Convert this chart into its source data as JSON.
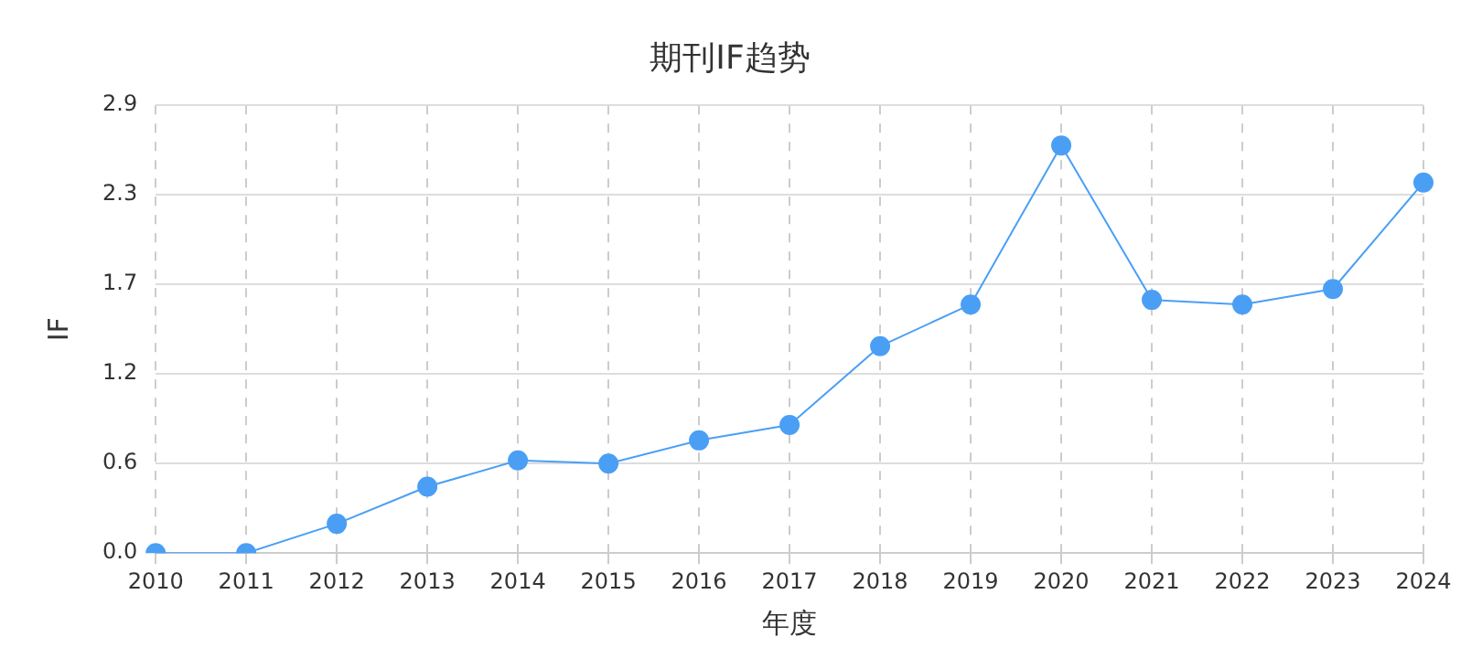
{
  "chart_data": {
    "type": "line",
    "title": "期刊IF趋势",
    "xlabel": "年度",
    "ylabel": "IF",
    "categories": [
      "2010",
      "2011",
      "2012",
      "2013",
      "2014",
      "2015",
      "2016",
      "2017",
      "2018",
      "2019",
      "2020",
      "2021",
      "2022",
      "2023",
      "2024"
    ],
    "series": [
      {
        "color": "#4a9ff5",
        "values": [
          0,
          0,
          0.19,
          0.43,
          0.6,
          0.58,
          0.73,
          0.83,
          1.34,
          1.61,
          2.64,
          1.64,
          1.61,
          1.71,
          2.4
        ]
      }
    ],
    "ylim": [
      0,
      2.9
    ],
    "yticks": [
      {
        "value": 0,
        "label": "0.0"
      },
      {
        "value": 0.58,
        "label": "0.6"
      },
      {
        "value": 1.16,
        "label": "1.2"
      },
      {
        "value": 1.74,
        "label": "1.7"
      },
      {
        "value": 2.32,
        "label": "2.3"
      },
      {
        "value": 2.9,
        "label": "2.9"
      }
    ],
    "grid": true,
    "legend": false,
    "marker": "circle",
    "line_style": "solid"
  }
}
